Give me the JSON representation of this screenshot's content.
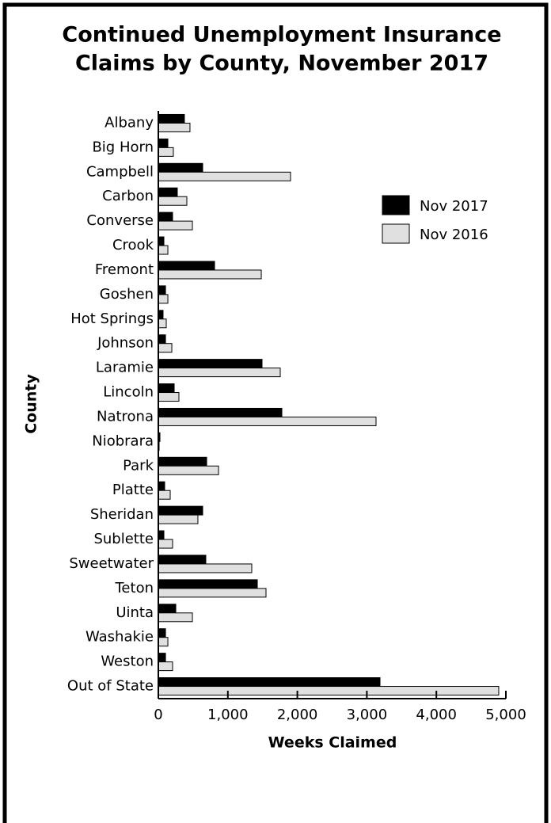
{
  "chart_data": {
    "type": "barh",
    "title": [
      "Continued Unemployment Insurance",
      "Claims by County, November 2017"
    ],
    "x_label": "Weeks Claimed",
    "y_label": "County",
    "categories": [
      "Albany",
      "Big Horn",
      "Campbell",
      "Carbon",
      "Converse",
      "Crook",
      "Fremont",
      "Goshen",
      "Hot Springs",
      "Johnson",
      "Laramie",
      "Lincoln",
      "Natrona",
      "Niobrara",
      "Park",
      "Platte",
      "Sheridan",
      "Sublette",
      "Sweetwater",
      "Teton",
      "Uinta",
      "Washakie",
      "Weston",
      "Out of State"
    ],
    "series": [
      {
        "name": "Nov 2017",
        "color": "#000000",
        "values": [
          375,
          137,
          638,
          273,
          205,
          80,
          809,
          103,
          68,
          103,
          1492,
          228,
          1777,
          23,
          695,
          91,
          638,
          80,
          683,
          1424,
          251,
          103,
          103,
          3189
        ]
      },
      {
        "name": "Nov 2016",
        "color": "#e0e0e0",
        "values": [
          455,
          216,
          1902,
          410,
          490,
          137,
          1481,
          137,
          114,
          194,
          1754,
          296,
          3132,
          11,
          866,
          171,
          569,
          205,
          1344,
          1549,
          490,
          137,
          205,
          4897
        ]
      }
    ],
    "xlim": [
      0,
      5000
    ],
    "xticks": [
      0,
      {
        "value": 1000,
        "label": "1,000"
      },
      {
        "value": 2000,
        "label": "2,000"
      },
      {
        "value": 3000,
        "label": "3,000"
      },
      {
        "value": 4000,
        "label": "4,000"
      },
      {
        "value": 5000,
        "label": "5,000"
      }
    ],
    "legend": "upper right"
  }
}
